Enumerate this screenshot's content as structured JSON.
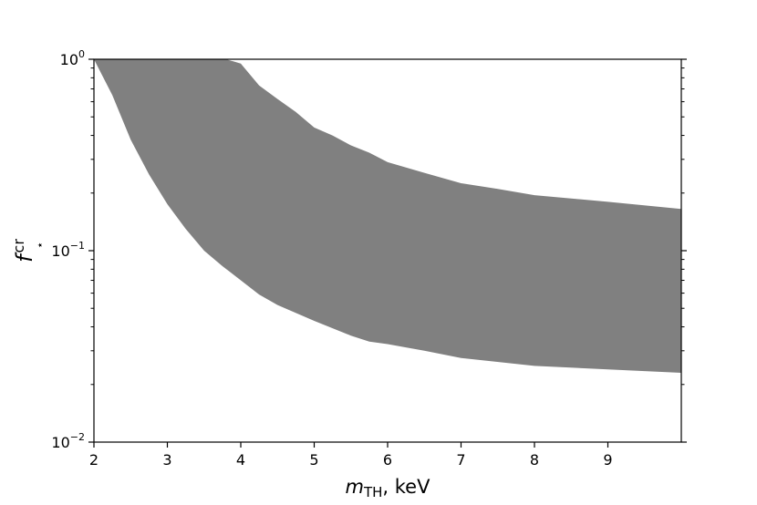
{
  "chart_data": {
    "type": "area",
    "title": "",
    "xlabel": {
      "main": "m",
      "sub": "TH",
      "suffix": ", keV"
    },
    "ylabel": {
      "main": "f",
      "sub": "⋆",
      "sup": "cr"
    },
    "xlim": [
      2,
      10
    ],
    "ylim": [
      0.01,
      1
    ],
    "yscale": "log",
    "grid": false,
    "fill_color": "#808080",
    "x_ticks": [
      {
        "value": 2,
        "label": "2"
      },
      {
        "value": 3,
        "label": "3"
      },
      {
        "value": 4,
        "label": "4"
      },
      {
        "value": 5,
        "label": "5"
      },
      {
        "value": 6,
        "label": "6"
      },
      {
        "value": 7,
        "label": "7"
      },
      {
        "value": 8,
        "label": "8"
      },
      {
        "value": 9,
        "label": "9"
      }
    ],
    "y_ticks": [
      {
        "value": 1,
        "base": "10",
        "exp": "0"
      },
      {
        "value": 0.1,
        "base": "10",
        "exp": "−1"
      },
      {
        "value": 0.01,
        "base": "10",
        "exp": "−2"
      }
    ],
    "band": {
      "upper": [
        [
          2.0,
          1.0
        ],
        [
          3.0,
          1.0
        ],
        [
          3.8,
          1.0
        ],
        [
          4.0,
          0.95
        ],
        [
          4.25,
          0.73
        ],
        [
          4.5,
          0.62
        ],
        [
          4.75,
          0.53
        ],
        [
          5.0,
          0.44
        ],
        [
          5.25,
          0.4
        ],
        [
          5.5,
          0.355
        ],
        [
          5.75,
          0.325
        ],
        [
          6.0,
          0.29
        ],
        [
          6.5,
          0.255
        ],
        [
          7.0,
          0.225
        ],
        [
          7.5,
          0.21
        ],
        [
          8.0,
          0.195
        ],
        [
          9.0,
          0.18
        ],
        [
          10.0,
          0.165
        ]
      ],
      "lower": [
        [
          2.0,
          1.0
        ],
        [
          2.25,
          0.65
        ],
        [
          2.5,
          0.38
        ],
        [
          2.75,
          0.25
        ],
        [
          3.0,
          0.175
        ],
        [
          3.25,
          0.13
        ],
        [
          3.5,
          0.1
        ],
        [
          3.75,
          0.083
        ],
        [
          4.0,
          0.07
        ],
        [
          4.25,
          0.059
        ],
        [
          4.5,
          0.052
        ],
        [
          5.0,
          0.043
        ],
        [
          5.5,
          0.036
        ],
        [
          5.75,
          0.0335
        ],
        [
          6.0,
          0.0325
        ],
        [
          6.5,
          0.03
        ],
        [
          7.0,
          0.0275
        ],
        [
          8.0,
          0.025
        ],
        [
          9.0,
          0.024
        ],
        [
          10.0,
          0.023
        ]
      ]
    }
  }
}
